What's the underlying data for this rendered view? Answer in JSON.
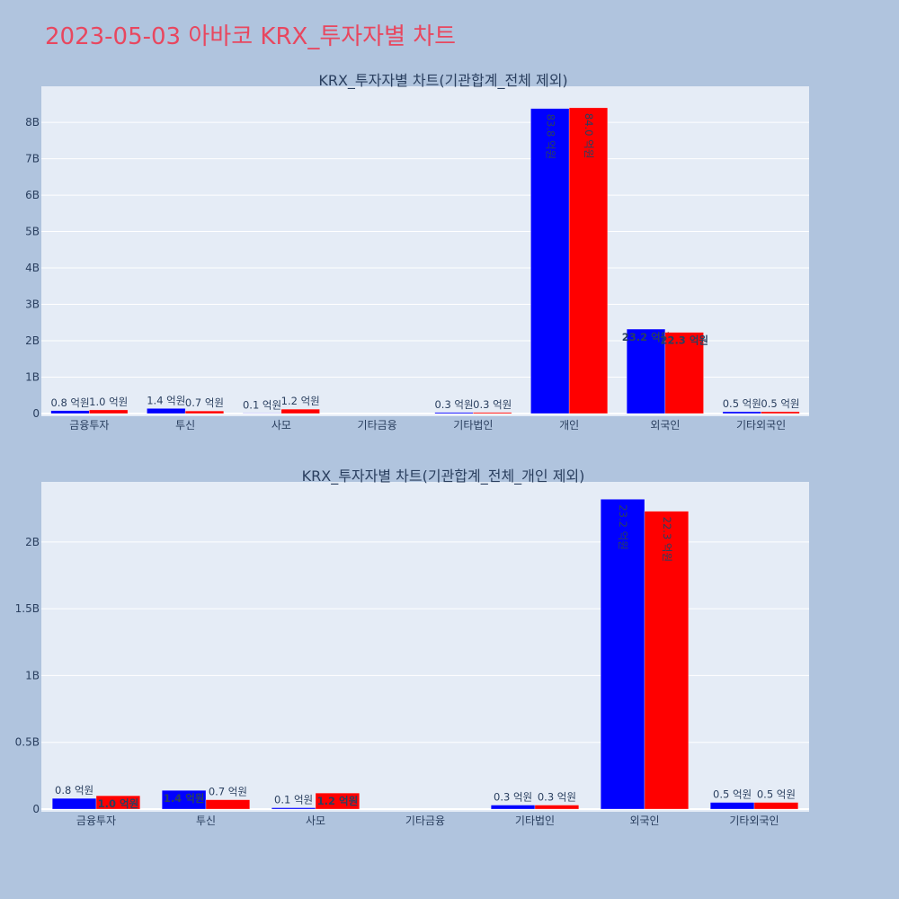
{
  "title": "2023-05-03 아바코 KRX_투자자별 차트",
  "colors": {
    "title": "#e8475f",
    "background": "#b0c4de",
    "plot_bg": "#e5ecf6",
    "grid": "#ffffff",
    "buy": "#0000ff",
    "sell": "#ff0000",
    "text": "#2a3f5f"
  },
  "chart_data": [
    {
      "type": "bar",
      "title": "KRX_투자자별 차트(기관합계_전체 제외)",
      "categories": [
        "금융투자",
        "투신",
        "사모",
        "기타금융",
        "기타법인",
        "개인",
        "외국인",
        "기타외국인"
      ],
      "series": [
        {
          "color": "#0000ff",
          "values": [
            80000000,
            140000000,
            10000000,
            0,
            30000000,
            8380000000,
            2320000000,
            50000000
          ],
          "labels": [
            "0.8 억원",
            "1.4 억원",
            "0.1 억원",
            "",
            "0.3 억원",
            "83.8 억원",
            "23.2 억원",
            "0.5 억원"
          ]
        },
        {
          "color": "#ff0000",
          "values": [
            100000000,
            70000000,
            120000000,
            0,
            30000000,
            8400000000,
            2230000000,
            50000000
          ],
          "labels": [
            "1.0 억원",
            "0.7 억원",
            "1.2 억원",
            "",
            "0.3 억원",
            "84.0 억원",
            "22.3 억원",
            "0.5 억원"
          ]
        }
      ],
      "yticks": [
        0,
        1000000000,
        2000000000,
        3000000000,
        4000000000,
        5000000000,
        6000000000,
        7000000000,
        8000000000
      ],
      "ytick_labels": [
        "0",
        "1B",
        "2B",
        "3B",
        "4B",
        "5B",
        "6B",
        "7B",
        "8B"
      ],
      "ylim": [
        0,
        8990000000
      ],
      "grid": true,
      "legend": "none"
    },
    {
      "type": "bar",
      "title": "KRX_투자자별 차트(기관합계_전체_개인 제외)",
      "categories": [
        "금융투자",
        "투신",
        "사모",
        "기타금융",
        "기타법인",
        "외국인",
        "기타외국인"
      ],
      "series": [
        {
          "color": "#0000ff",
          "values": [
            80000000,
            140000000,
            10000000,
            0,
            30000000,
            2320000000,
            50000000
          ],
          "labels": [
            "0.8 억원",
            "1.4 억원",
            "0.1 억원",
            "",
            "0.3 억원",
            "23.2 억원",
            "0.5 억원"
          ]
        },
        {
          "color": "#ff0000",
          "values": [
            100000000,
            70000000,
            120000000,
            0,
            30000000,
            2230000000,
            50000000
          ],
          "labels": [
            "1.0 억원",
            "0.7 억원",
            "1.2 억원",
            "",
            "0.3 억원",
            "22.3 억원",
            "0.5 억원"
          ]
        }
      ],
      "yticks": [
        0,
        500000000,
        1000000000,
        1500000000,
        2000000000
      ],
      "ytick_labels": [
        "0",
        "0.5B",
        "1B",
        "1.5B",
        "2B"
      ],
      "ylim": [
        0,
        2450000000
      ],
      "grid": true,
      "legend": "none"
    }
  ]
}
